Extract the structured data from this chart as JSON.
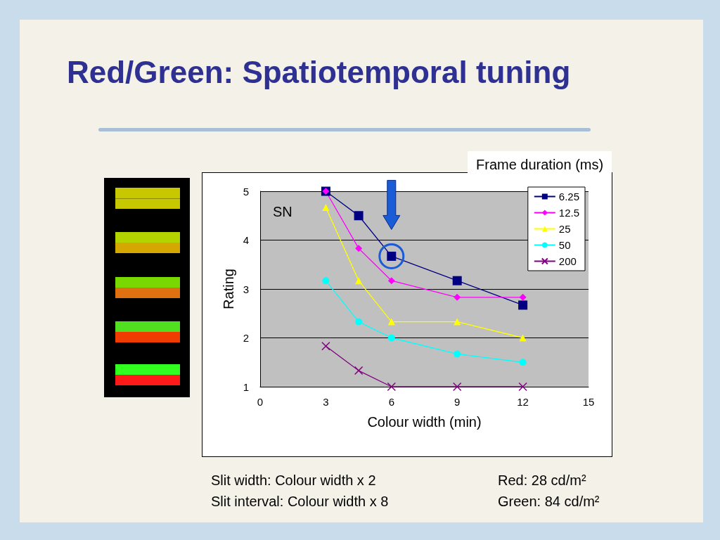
{
  "chart_data": {
    "type": "line",
    "title": "Red/Green: Spatiotemporal tuning",
    "xlabel": "Colour width (min)",
    "ylabel": "Rating",
    "legend_title": "Frame duration (ms)",
    "xlim": [
      0,
      15
    ],
    "xticks": [
      0,
      3,
      6,
      9,
      12,
      15
    ],
    "ylim": [
      1,
      5
    ],
    "yticks": [
      1,
      2,
      3,
      4,
      5
    ],
    "x": [
      3,
      4.5,
      6,
      9,
      12
    ],
    "series": [
      {
        "name": "6.25",
        "color": "#000080",
        "marker": "square",
        "values": [
          5,
          4.5,
          3.67,
          3.17,
          2.67
        ]
      },
      {
        "name": "12.5",
        "color": "#ff00ff",
        "marker": "diamond",
        "values": [
          5,
          3.83,
          3.17,
          2.83,
          2.83
        ]
      },
      {
        "name": "25",
        "color": "#ffff00",
        "marker": "triangle",
        "values": [
          4.67,
          3.17,
          2.33,
          2.33,
          2.0
        ]
      },
      {
        "name": "50",
        "color": "#00ffff",
        "marker": "circle",
        "values": [
          3.17,
          2.33,
          2.0,
          1.67,
          1.5
        ]
      },
      {
        "name": "200",
        "color": "#800080",
        "marker": "cross",
        "values": [
          1.83,
          1.33,
          1.0,
          1.0,
          1.0
        ]
      }
    ],
    "annotations": [
      "SN",
      "Slit width: Colour width x 2",
      "Slit interval: Colour width x 8",
      "Red: 28 cd/m²",
      "Green: 84 cd/m²"
    ],
    "grid": "y",
    "legend": "top right",
    "line_style": "solid"
  }
}
